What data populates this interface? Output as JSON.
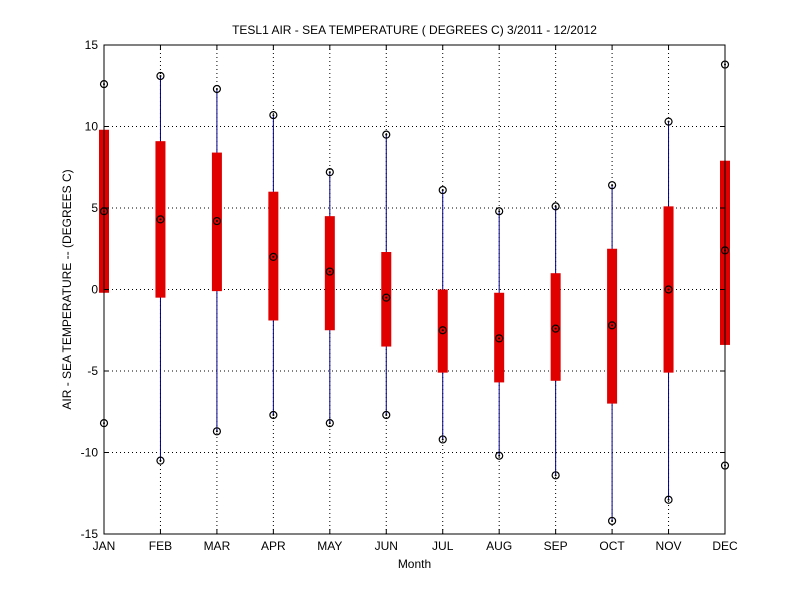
{
  "chart_data": {
    "type": "boxplot",
    "title": "TESL1  AIR - SEA TEMPERATURE ( DEGREES C) 3/2011 - 12/2012",
    "xlabel": "Month",
    "ylabel": "AIR - SEA TEMPERATURE -- (DEGREES C)",
    "ylim": [
      -15,
      15
    ],
    "yticks": [
      -15,
      -10,
      -5,
      0,
      5,
      10,
      15
    ],
    "ytick_labels": [
      "-15",
      "-10",
      "-5",
      "0",
      "5",
      "10",
      "15"
    ],
    "grid": true,
    "categories": [
      "JAN",
      "FEB",
      "MAR",
      "APR",
      "MAY",
      "JUN",
      "JUL",
      "AUG",
      "SEP",
      "OCT",
      "NOV",
      "DEC"
    ],
    "series": [
      {
        "month": "JAN",
        "max": 12.6,
        "box_top": 9.8,
        "median": 4.8,
        "box_bottom": -0.2,
        "min": -8.2
      },
      {
        "month": "FEB",
        "max": 13.1,
        "box_top": 9.1,
        "median": 4.3,
        "box_bottom": -0.5,
        "min": -10.5
      },
      {
        "month": "MAR",
        "max": 12.3,
        "box_top": 8.4,
        "median": 4.2,
        "box_bottom": -0.1,
        "min": -8.7
      },
      {
        "month": "APR",
        "max": 10.7,
        "box_top": 6.0,
        "median": 2.0,
        "box_bottom": -1.9,
        "min": -7.7
      },
      {
        "month": "MAY",
        "max": 7.2,
        "box_top": 4.5,
        "median": 1.1,
        "box_bottom": -2.5,
        "min": -8.2
      },
      {
        "month": "JUN",
        "max": 9.5,
        "box_top": 2.3,
        "median": -0.5,
        "box_bottom": -3.5,
        "min": -7.7
      },
      {
        "month": "JUL",
        "max": 6.1,
        "box_top": 0.0,
        "median": -2.5,
        "box_bottom": -5.1,
        "min": -9.2
      },
      {
        "month": "AUG",
        "max": 4.8,
        "box_top": -0.2,
        "median": -3.0,
        "box_bottom": -5.7,
        "min": -10.2
      },
      {
        "month": "SEP",
        "max": 5.1,
        "box_top": 1.0,
        "median": -2.4,
        "box_bottom": -5.6,
        "min": -11.4
      },
      {
        "month": "OCT",
        "max": 6.4,
        "box_top": 2.5,
        "median": -2.2,
        "box_bottom": -7.0,
        "min": -14.2
      },
      {
        "month": "NOV",
        "max": 10.3,
        "box_top": 5.1,
        "median": 0.0,
        "box_bottom": -5.1,
        "min": -12.9
      },
      {
        "month": "DEC",
        "max": 13.8,
        "box_top": 7.9,
        "median": 2.4,
        "box_bottom": -3.4,
        "min": -10.8
      }
    ],
    "colors": {
      "box": "#e00000",
      "whisker": "#00008b",
      "marker": "#000000",
      "grid": "#000000",
      "axis": "#000000"
    }
  }
}
